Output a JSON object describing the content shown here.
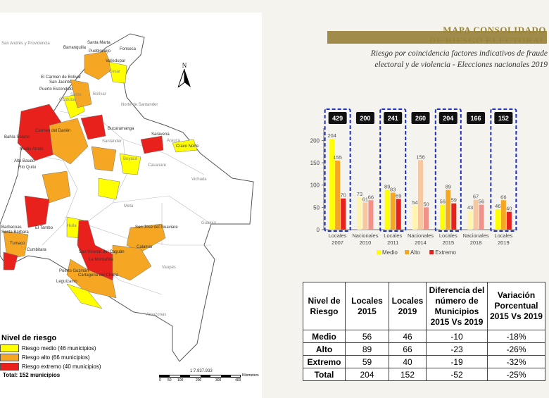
{
  "title": {
    "line1": "MAPA CONSOLIDADO",
    "line2": "DE RIESGO ELECTORAL",
    "subtitle1": "Riesgo por coincidencia factores indicativos de fraude",
    "subtitle2": "electoral y de violencia - Elecciones nacionales 2019"
  },
  "map": {
    "labels": [
      "San Andrés y Providencia",
      "Santa Marta",
      "Barranquilla",
      "Fonseca",
      "Puebloviejo",
      "Valledupar",
      "Cesar",
      "El Carmen de Bolívar",
      "San Jacinto",
      "Puerto Escondido",
      "Córdoba",
      "Sucre",
      "Bolívar",
      "Norte de Santander",
      "Carmen del Darién",
      "Bahía Solano",
      "Medio Atrato",
      "Alto Baudó",
      "Río Quito",
      "Santander",
      "Bucaramanga",
      "Arauca",
      "Saravena",
      "Cravo Norte",
      "Boyacá",
      "Casanare",
      "Vichada",
      "Meta",
      "Guainía",
      "El Tambo",
      "Barbacoas",
      "Santa Bárbara",
      "Tumaco",
      "Cumbitara",
      "Huila",
      "San José del Guaviare",
      "Calamar",
      "San Vicente del Caguán",
      "La Montañita",
      "Cartagena del Chairá",
      "Vaupés",
      "Leguízamo",
      "Amazonas",
      "Puerto Guzmán"
    ],
    "north_label": "N",
    "legend_title": "Nivel de riesgo",
    "legend_items": [
      {
        "label": "Riesgo medio (46 municipios)",
        "color": "#ffff00"
      },
      {
        "label": "Riesgo alto (66 municipios)",
        "color": "#f5a623"
      },
      {
        "label": "Riesgo extremo (40 municipios)",
        "color": "#e8211d"
      }
    ],
    "legend_total": "Total: 152 municipios",
    "scale_ratio": "1:7.937.933",
    "scale_ticks": [
      "0",
      "50",
      "100",
      "200",
      "300",
      "400"
    ],
    "scale_unit": "Kilometers"
  },
  "chart_data": {
    "type": "bar",
    "categories": [
      "Locales 2007",
      "Nacionales 2010",
      "Locales 2011",
      "Nacionales 2014",
      "Locales 2015",
      "Nacionales 2018",
      "Locales 2019"
    ],
    "category_lines": [
      [
        "Locales",
        "2007"
      ],
      [
        "Nacionales",
        "2010"
      ],
      [
        "Locales",
        "2011"
      ],
      [
        "Nacionales",
        "2014"
      ],
      [
        "Locales",
        "2015"
      ],
      [
        "Nacionales",
        "2018"
      ],
      [
        "Locales",
        "2019"
      ]
    ],
    "totals": [
      429,
      200,
      241,
      260,
      204,
      166,
      152
    ],
    "highlighted": [
      true,
      false,
      true,
      false,
      true,
      false,
      true
    ],
    "series": [
      {
        "name": "Medio",
        "values": [
          204,
          73,
          89,
          54,
          56,
          43,
          46
        ],
        "color": "#ffff00",
        "muted_color": "#fff5b0"
      },
      {
        "name": "Alto",
        "values": [
          155,
          61,
          83,
          156,
          89,
          67,
          66
        ],
        "color": "#f5a623",
        "muted_color": "#f6c8a2"
      },
      {
        "name": "Extremo",
        "values": [
          70,
          66,
          69,
          50,
          59,
          56,
          40
        ],
        "color": "#e8211d",
        "muted_color": "#f0928a"
      }
    ],
    "yticks": [
      0,
      50,
      100,
      150,
      200
    ],
    "ylim": [
      0,
      215
    ],
    "legend_position": "bottom"
  },
  "table": {
    "headers": [
      "Nivel de Riesgo",
      "Locales 2015",
      "Locales 2019",
      "Diferencia del número de Municipios 2015 Vs 2019",
      "Variación Porcentual 2015 Vs 2019"
    ],
    "rows": [
      [
        "Medio",
        "56",
        "46",
        "-10",
        "-18%"
      ],
      [
        "Alto",
        "89",
        "66",
        "-23",
        "-26%"
      ],
      [
        "Extremo",
        "59",
        "40",
        "-19",
        "-32%"
      ],
      [
        "Total",
        "204",
        "152",
        "-52",
        "-25%"
      ]
    ]
  }
}
